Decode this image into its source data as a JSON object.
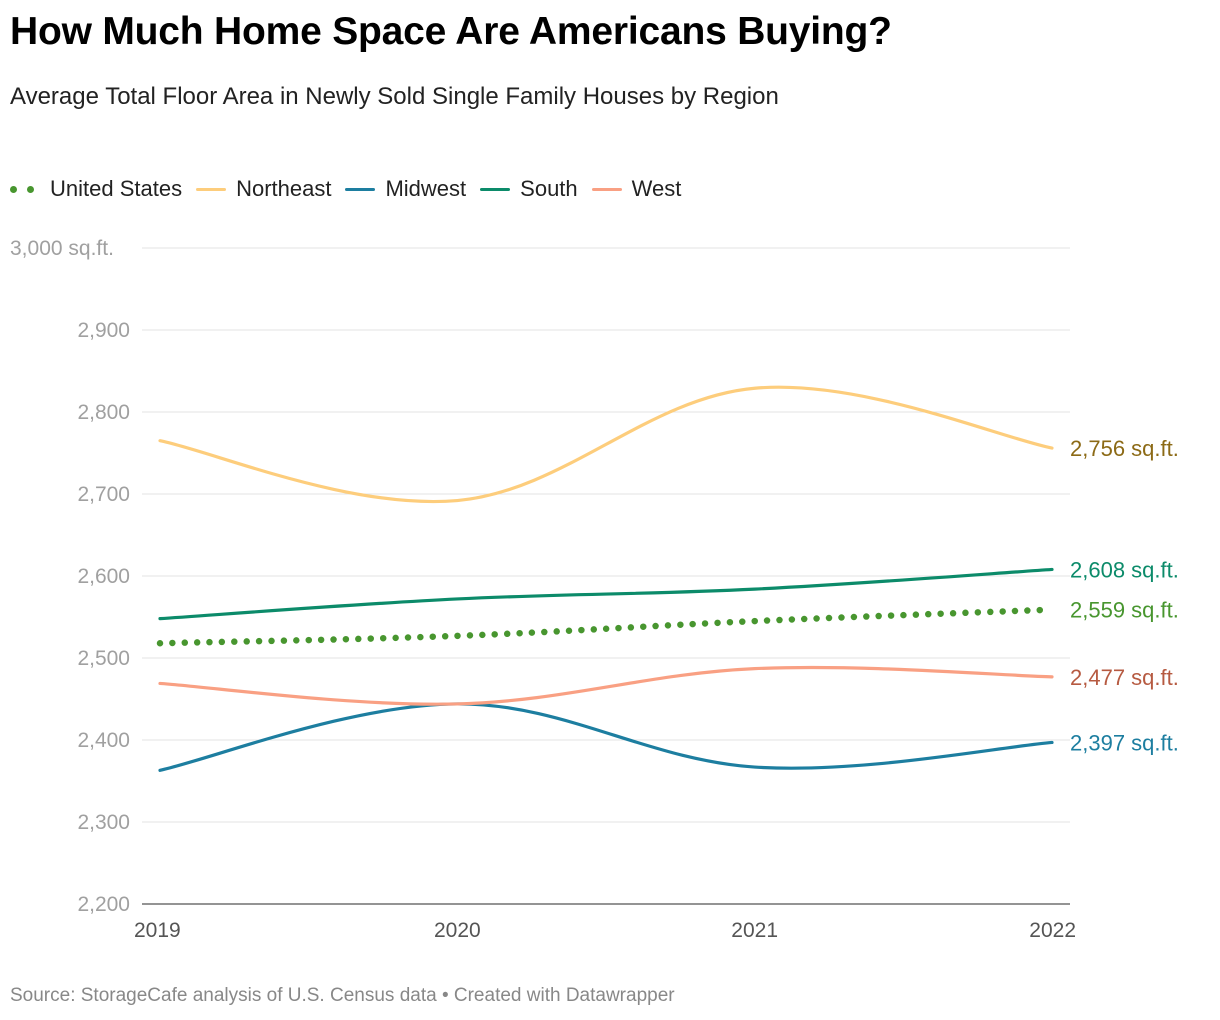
{
  "title": "How Much Home Space Are Americans Buying?",
  "subtitle": "Average Total Floor Area in Newly Sold Single Family Houses by Region",
  "source": "Source: StorageCafe analysis of U.S. Census data • Created with Datawrapper",
  "chart_data": {
    "type": "line",
    "title": "How Much Home Space Are Americans Buying?",
    "subtitle": "Average Total Floor Area in Newly Sold Single Family Houses by Region",
    "x": [
      "2019",
      "2020",
      "2021",
      "2022"
    ],
    "ylim": [
      2200,
      3000
    ],
    "yticks": [
      2200,
      2300,
      2400,
      2500,
      2600,
      2700,
      2800,
      2900,
      3000
    ],
    "ytick_labels": [
      "2,200",
      "2,300",
      "2,400",
      "2,500",
      "2,600",
      "2,700",
      "2,800",
      "2,900",
      "3,000 sq.ft."
    ],
    "grid": true,
    "legend_position": "top-left",
    "series": [
      {
        "name": "United States",
        "values": [
          2518,
          2527,
          2545,
          2559
        ],
        "color": "#48962f",
        "label_color": "#48962f",
        "style": "dotted",
        "end_label": "2,559 sq.ft."
      },
      {
        "name": "Northeast",
        "values": [
          2765,
          2692,
          2829,
          2756
        ],
        "color": "#fdcd7c",
        "label_color": "#8c6a16",
        "style": "solid",
        "end_label": "2,756 sq.ft."
      },
      {
        "name": "Midwest",
        "values": [
          2363,
          2444,
          2367,
          2397
        ],
        "color": "#1d7ea0",
        "label_color": "#1d7ea0",
        "style": "solid",
        "end_label": "2,397 sq.ft."
      },
      {
        "name": "South",
        "values": [
          2548,
          2572,
          2584,
          2608
        ],
        "color": "#0c8b6a",
        "label_color": "#0c8b6a",
        "style": "solid",
        "end_label": "2,608 sq.ft."
      },
      {
        "name": "West",
        "values": [
          2469,
          2444,
          2487,
          2477
        ],
        "color": "#f9a083",
        "label_color": "#b65a41",
        "style": "solid",
        "end_label": "2,477 sq.ft."
      }
    ]
  }
}
